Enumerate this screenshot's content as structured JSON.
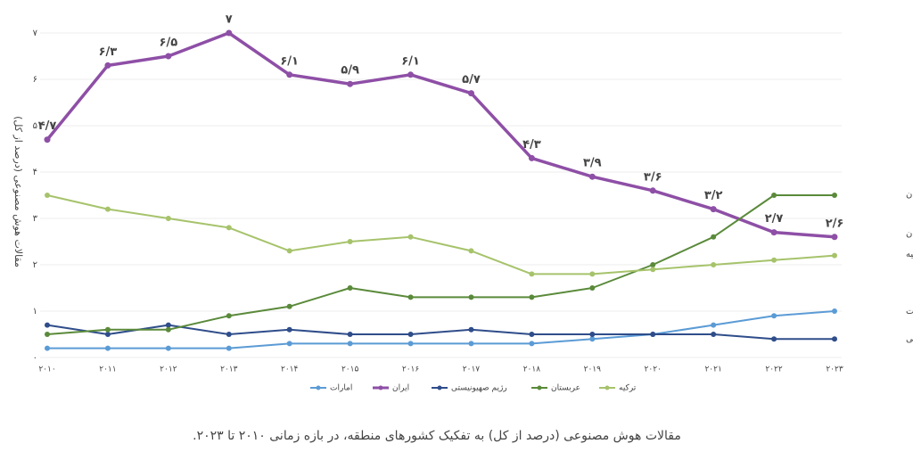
{
  "chart_data": {
    "type": "line",
    "y_label": "مقالات هوش مصنوعی (درصد از کل)",
    "caption": "مقالات هوش مصنوعی (درصد از کل) به تفکیک کشورهای منطقه، در بازه زمانی ۲۰۱۰ تا ۲۰۲۳.",
    "categories": [
      "۲۰۱۰",
      "۲۰۱۱",
      "۲۰۱۲",
      "۲۰۱۳",
      "۲۰۱۴",
      "۲۰۱۵",
      "۲۰۱۶",
      "۲۰۱۷",
      "۲۰۱۸",
      "۲۰۱۹",
      "۲۰۲۰",
      "۲۰۲۱",
      "۲۰۲۲",
      "۲۰۲۳"
    ],
    "ylim": [
      0,
      7
    ],
    "yticks": [
      {
        "value": 0,
        "label": "۰"
      },
      {
        "value": 1,
        "label": "۱"
      },
      {
        "value": 2,
        "label": "۲"
      },
      {
        "value": 3,
        "label": "۳"
      },
      {
        "value": 4,
        "label": "۴"
      },
      {
        "value": 5,
        "label": "۵"
      },
      {
        "value": 6,
        "label": "۶"
      },
      {
        "value": 7,
        "label": "۷"
      }
    ],
    "grid": true,
    "series": [
      {
        "name": "امارات",
        "color": "#5b9bd5",
        "values": [
          0.2,
          0.2,
          0.2,
          0.2,
          0.3,
          0.3,
          0.3,
          0.3,
          0.3,
          0.4,
          0.5,
          0.7,
          0.9,
          1.0
        ]
      },
      {
        "name": "ایران",
        "color": "#8e4fa6",
        "values": [
          4.7,
          6.3,
          6.5,
          7,
          6.1,
          5.9,
          6.1,
          5.7,
          4.3,
          3.9,
          3.6,
          3.2,
          2.7,
          2.6
        ],
        "value_labels": [
          "۴/۷",
          "۶/۳",
          "۶/۵",
          "۷",
          "۶/۱",
          "۵/۹",
          "۶/۱",
          "۵/۷",
          "۴/۳",
          "۳/۹",
          "۳/۶",
          "۳/۲",
          "۲/۷",
          "۲/۶"
        ]
      },
      {
        "name": "رژیم صهیونیستی",
        "color": "#2f4d8a",
        "values": [
          0.7,
          0.5,
          0.7,
          0.5,
          0.6,
          0.5,
          0.5,
          0.6,
          0.5,
          0.5,
          0.5,
          0.5,
          0.4,
          0.4
        ]
      },
      {
        "name": "عربستان",
        "color": "#5a8a3a",
        "values": [
          0.5,
          0.6,
          0.6,
          0.9,
          1.1,
          1.5,
          1.3,
          1.3,
          1.3,
          1.5,
          2.0,
          2.6,
          3.5,
          3.5
        ]
      },
      {
        "name": "ترکیه",
        "color": "#a6c36b",
        "values": [
          3.5,
          3.2,
          3.0,
          2.8,
          2.3,
          2.5,
          2.6,
          2.3,
          1.8,
          1.8,
          1.9,
          2.0,
          2.1,
          2.2
        ]
      }
    ]
  }
}
